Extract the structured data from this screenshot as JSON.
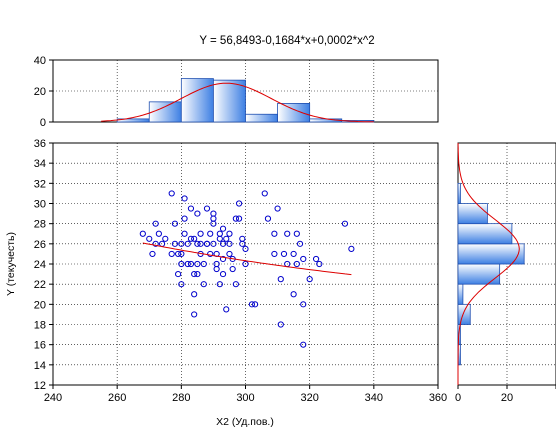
{
  "chart_data": [
    {
      "type": "scatter",
      "title": "Y = 56,8493-0,1684*x+0,0002*x^2",
      "xlabel": "X2 (Уд.пов.)",
      "ylabel": "Y (текучесть)",
      "xlim": [
        240,
        360
      ],
      "ylim": [
        12,
        36
      ],
      "xticks": [
        240,
        260,
        280,
        300,
        320,
        340,
        360
      ],
      "yticks": [
        12,
        14,
        16,
        18,
        20,
        22,
        24,
        26,
        28,
        30,
        32,
        34,
        36
      ],
      "grid": true,
      "marker_color": "#0000cc",
      "fit_color": "#dd0000",
      "fit": {
        "a": 56.8493,
        "b": -0.1684,
        "c": 0.0002,
        "x_range": [
          268,
          333
        ]
      },
      "points": [
        [
          268,
          27
        ],
        [
          270,
          26.5
        ],
        [
          271,
          25
        ],
        [
          272,
          28
        ],
        [
          272,
          26
        ],
        [
          273,
          27
        ],
        [
          274,
          26
        ],
        [
          275,
          26.5
        ],
        [
          277,
          25
        ],
        [
          277,
          31
        ],
        [
          278,
          28
        ],
        [
          278,
          26
        ],
        [
          279,
          25
        ],
        [
          279,
          23
        ],
        [
          280,
          22
        ],
        [
          280,
          24
        ],
        [
          280,
          25
        ],
        [
          280,
          26
        ],
        [
          281,
          27
        ],
        [
          281,
          28.5
        ],
        [
          281,
          30.5
        ],
        [
          282,
          26
        ],
        [
          282,
          24
        ],
        [
          283,
          29.5
        ],
        [
          283,
          26.5
        ],
        [
          283,
          24
        ],
        [
          284,
          26.5
        ],
        [
          284,
          23
        ],
        [
          284,
          21
        ],
        [
          284,
          19
        ],
        [
          285,
          29
        ],
        [
          285,
          26
        ],
        [
          285,
          24
        ],
        [
          285,
          23
        ],
        [
          286,
          27
        ],
        [
          286,
          26
        ],
        [
          286,
          25
        ],
        [
          287,
          24
        ],
        [
          287,
          22
        ],
        [
          288,
          26
        ],
        [
          288,
          29.5
        ],
        [
          288,
          26
        ],
        [
          289,
          25
        ],
        [
          289,
          27
        ],
        [
          290,
          28
        ],
        [
          290,
          28.5
        ],
        [
          290,
          29
        ],
        [
          290,
          26
        ],
        [
          291,
          25
        ],
        [
          291,
          24
        ],
        [
          291,
          23.5
        ],
        [
          292,
          27
        ],
        [
          292,
          26.5
        ],
        [
          292,
          22
        ],
        [
          293,
          27.5
        ],
        [
          293,
          26
        ],
        [
          293,
          24.5
        ],
        [
          293,
          23
        ],
        [
          294,
          26.5
        ],
        [
          294,
          19.5
        ],
        [
          295,
          27
        ],
        [
          295,
          25
        ],
        [
          295,
          26
        ],
        [
          296,
          24.5
        ],
        [
          296,
          23.5
        ],
        [
          297,
          28.5
        ],
        [
          297,
          22
        ],
        [
          298,
          28.5
        ],
        [
          298,
          30
        ],
        [
          299,
          26
        ],
        [
          299,
          26.5
        ],
        [
          300,
          25.5
        ],
        [
          300,
          24
        ],
        [
          302,
          20
        ],
        [
          303,
          20
        ],
        [
          306,
          31
        ],
        [
          307,
          28.5
        ],
        [
          309,
          27
        ],
        [
          309,
          25
        ],
        [
          310,
          29.5
        ],
        [
          311,
          22.5
        ],
        [
          311,
          18
        ],
        [
          312,
          25
        ],
        [
          313,
          27
        ],
        [
          313,
          24
        ],
        [
          315,
          25
        ],
        [
          315,
          21
        ],
        [
          316,
          24
        ],
        [
          316,
          27
        ],
        [
          317,
          26
        ],
        [
          318,
          24.5
        ],
        [
          318,
          20
        ],
        [
          318,
          16
        ],
        [
          320,
          22.5
        ],
        [
          322,
          24.5
        ],
        [
          323,
          24
        ],
        [
          331,
          28
        ],
        [
          333,
          25.5
        ]
      ]
    },
    {
      "type": "bar",
      "orientation": "vertical",
      "xlim": [
        240,
        360
      ],
      "ylim": [
        0,
        40
      ],
      "yticks": [
        0,
        20,
        40
      ],
      "bin_edges": [
        260,
        270,
        280,
        290,
        300,
        310,
        320,
        330,
        340
      ],
      "values": [
        2,
        13,
        28,
        27,
        5,
        12,
        2,
        1
      ],
      "fit_color": "#dd0000",
      "density_curve": {
        "mean": 294,
        "sd": 14,
        "peak": 25
      }
    },
    {
      "type": "bar",
      "orientation": "horizontal",
      "ylim": [
        12,
        36
      ],
      "xlim": [
        0,
        40
      ],
      "xticks": [
        0,
        20,
        40
      ],
      "bin_edges": [
        14,
        16,
        18,
        20,
        22,
        24,
        26,
        28,
        30,
        32
      ],
      "values": [
        1,
        1,
        5,
        2,
        17,
        27,
        22,
        12,
        1
      ],
      "fit_color": "#dd0000",
      "density_curve": {
        "mean": 25.5,
        "sd": 2.9,
        "peak": 25
      }
    }
  ]
}
